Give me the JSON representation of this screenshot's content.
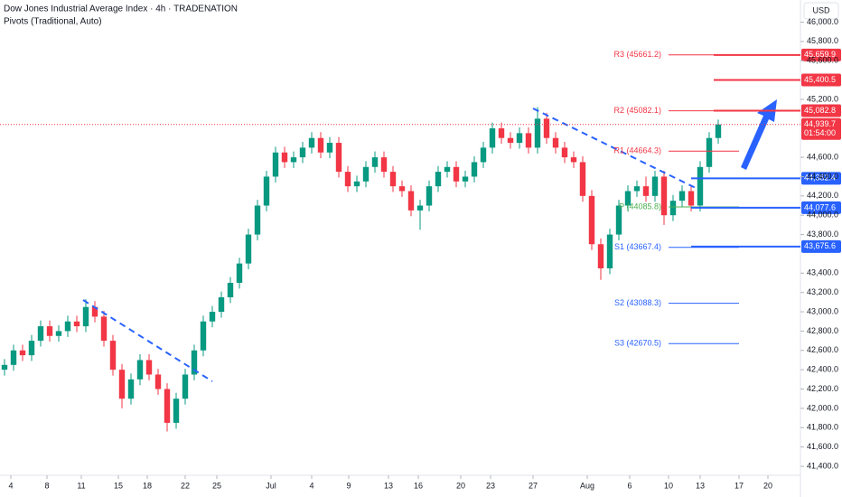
{
  "header": {
    "title": "Dow Jones Industrial Average Index · 4h · TRADENATION",
    "indicator": "Pivots (Traditional, Auto)",
    "currency": "USD"
  },
  "chart_data": {
    "type": "candlestick",
    "open": [
      42400,
      42450,
      42600,
      42550,
      42700,
      42850,
      42750,
      42800,
      42900,
      42850,
      43050,
      42950,
      42700,
      42400,
      42100,
      42300,
      42500,
      42350,
      42200,
      41850,
      42100,
      42350,
      42600,
      42900,
      43000,
      43150,
      43300,
      43500,
      43800,
      44100,
      44400,
      44650,
      44550,
      44600,
      44700,
      44800,
      44650,
      44750,
      44450,
      44300,
      44350,
      44500,
      44600,
      44450,
      44300,
      44250,
      44050,
      44100,
      44300,
      44450,
      44500,
      44350,
      44400,
      44550,
      44700,
      44900,
      44800,
      44750,
      44850,
      44700,
      45000,
      44800,
      44700,
      44600,
      44550,
      44200,
      43700,
      43450,
      43800,
      44100,
      44250,
      44300,
      44200,
      44400,
      44000,
      44150,
      44250,
      44100,
      44500,
      44800
    ],
    "high": [
      42510,
      42660,
      42660,
      42760,
      42910,
      42910,
      42860,
      42960,
      42960,
      43130,
      43110,
      43010,
      42760,
      42460,
      42360,
      42560,
      42560,
      42410,
      42260,
      42160,
      42410,
      42660,
      42960,
      43060,
      43210,
      43360,
      43560,
      43860,
      44160,
      44460,
      44710,
      44710,
      44660,
      44760,
      44860,
      44860,
      44810,
      44810,
      44510,
      44410,
      44560,
      44660,
      44660,
      44510,
      44360,
      44310,
      44160,
      44360,
      44510,
      44560,
      44560,
      44460,
      44610,
      44760,
      44960,
      44960,
      44860,
      44910,
      44910,
      45120,
      45060,
      44860,
      44760,
      44660,
      44610,
      44260,
      43760,
      43860,
      44160,
      44310,
      44360,
      44400,
      44460,
      44460,
      44210,
      44310,
      44310,
      44560,
      44860,
      44990
    ],
    "low": [
      42340,
      42390,
      42490,
      42490,
      42640,
      42690,
      42690,
      42740,
      42790,
      42790,
      42890,
      42640,
      42340,
      42000,
      42040,
      42240,
      42290,
      42140,
      41760,
      41790,
      42040,
      42290,
      42540,
      42840,
      42940,
      43090,
      43240,
      43440,
      43740,
      44040,
      44340,
      44490,
      44490,
      44540,
      44640,
      44590,
      44590,
      44390,
      44240,
      44240,
      44290,
      44440,
      44390,
      44240,
      44190,
      43990,
      43850,
      44040,
      44240,
      44390,
      44290,
      44290,
      44340,
      44490,
      44640,
      44740,
      44690,
      44690,
      44640,
      44640,
      44740,
      44640,
      44540,
      44490,
      44140,
      43640,
      43330,
      43390,
      43740,
      44040,
      44190,
      44140,
      44140,
      43900,
      43940,
      44090,
      44040,
      44040,
      44440,
      44740
    ],
    "close": [
      42450,
      42600,
      42550,
      42700,
      42850,
      42750,
      42800,
      42900,
      42850,
      43050,
      42950,
      42700,
      42400,
      42100,
      42300,
      42500,
      42350,
      42200,
      41850,
      42100,
      42350,
      42600,
      42900,
      43000,
      43150,
      43300,
      43500,
      43800,
      44100,
      44400,
      44650,
      44550,
      44600,
      44700,
      44800,
      44650,
      44750,
      44450,
      44300,
      44350,
      44500,
      44600,
      44450,
      44300,
      44250,
      44050,
      44100,
      44300,
      44450,
      44500,
      44350,
      44400,
      44550,
      44700,
      44900,
      44800,
      44750,
      44850,
      44700,
      45000,
      44800,
      44700,
      44600,
      44550,
      44200,
      43700,
      43450,
      43800,
      44100,
      44250,
      44300,
      44200,
      44400,
      44000,
      44150,
      44250,
      44100,
      44500,
      44800,
      44940
    ],
    "up_color": "#089981",
    "down_color": "#f23645",
    "xlim": [
      0,
      88.5
    ],
    "xticks": [
      {
        "value": 1.2,
        "label": "4"
      },
      {
        "value": 5.2,
        "label": "8"
      },
      {
        "value": 9,
        "label": "11"
      },
      {
        "value": 13.1,
        "label": "15"
      },
      {
        "value": 16.3,
        "label": "18"
      },
      {
        "value": 20.5,
        "label": "22"
      },
      {
        "value": 24,
        "label": "25"
      },
      {
        "value": 30,
        "label": "Jul"
      },
      {
        "value": 34.5,
        "label": "4"
      },
      {
        "value": 38.6,
        "label": "9"
      },
      {
        "value": 43,
        "label": "13"
      },
      {
        "value": 46.3,
        "label": "16"
      },
      {
        "value": 51,
        "label": "20"
      },
      {
        "value": 54.3,
        "label": "23"
      },
      {
        "value": 59,
        "label": "27"
      },
      {
        "value": 65,
        "label": "Aug"
      },
      {
        "value": 69.7,
        "label": "6"
      },
      {
        "value": 74,
        "label": "10"
      },
      {
        "value": 77.5,
        "label": "13"
      },
      {
        "value": 81.8,
        "label": "17"
      },
      {
        "value": 85,
        "label": "20"
      }
    ],
    "ylim": [
      41400,
      46000
    ],
    "yticks": [
      {
        "value": 46000,
        "label": "46,000.0"
      },
      {
        "value": 45800,
        "label": "45,800.0"
      },
      {
        "value": 45600,
        "label": "45,600.0"
      },
      {
        "value": 45200,
        "label": "45,200.0"
      },
      {
        "value": 44600,
        "label": "44,600.0"
      },
      {
        "value": 44400,
        "label": "44,400.0"
      },
      {
        "value": 44200,
        "label": "44,200.0"
      },
      {
        "value": 44000,
        "label": "44,000.0"
      },
      {
        "value": 43800,
        "label": "43,800.0"
      },
      {
        "value": 43400,
        "label": "43,400.0"
      },
      {
        "value": 43200,
        "label": "43,200.0"
      },
      {
        "value": 43000,
        "label": "43,000.0"
      },
      {
        "value": 42800,
        "label": "42,800.0"
      },
      {
        "value": 42600,
        "label": "42,600.0"
      },
      {
        "value": 42400,
        "label": "42,400.0"
      },
      {
        "value": 42200,
        "label": "42,200.0"
      },
      {
        "value": 42000,
        "label": "42,000.0"
      },
      {
        "value": 41800,
        "label": "41,800.0"
      },
      {
        "value": 41600,
        "label": "41,600.0"
      },
      {
        "value": 41400,
        "label": "41,400.0"
      }
    ],
    "pivots": [
      {
        "label": "R3 (45661.2)",
        "value": 45661.2,
        "color": "#f23645"
      },
      {
        "label": "R2 (45082.1)",
        "value": 45082.1,
        "color": "#f23645"
      },
      {
        "label": "R1 (44664.3)",
        "value": 44664.3,
        "color": "#f23645"
      },
      {
        "label": "P (44085.8)",
        "value": 44085.8,
        "color": "#4caf50"
      },
      {
        "label": "S1 (43667.4)",
        "value": 43667.4,
        "color": "#2962ff"
      },
      {
        "label": "S2 (43088.3)",
        "value": 43088.3,
        "color": "#2962ff"
      },
      {
        "label": "S3 (42670.5)",
        "value": 42670.5,
        "color": "#2962ff"
      }
    ],
    "levels": [
      {
        "value": 45659.9,
        "label": "45,659.9",
        "color": "#f23645"
      },
      {
        "value": 45400.5,
        "label": "45,400.5",
        "color": "#f23645"
      },
      {
        "value": 45082.8,
        "label": "45,082.8",
        "color": "#f23645"
      },
      {
        "value": 44382.4,
        "label": "44,382.4",
        "color": "#2962ff"
      },
      {
        "value": 44077.6,
        "label": "44,077.6",
        "color": "#2962ff"
      },
      {
        "value": 43675.6,
        "label": "43,675.6",
        "color": "#2962ff"
      }
    ],
    "last_price": {
      "value": 44939.7,
      "label": "44,939.7",
      "countdown": "01:54:00",
      "color": "#f23645"
    }
  }
}
